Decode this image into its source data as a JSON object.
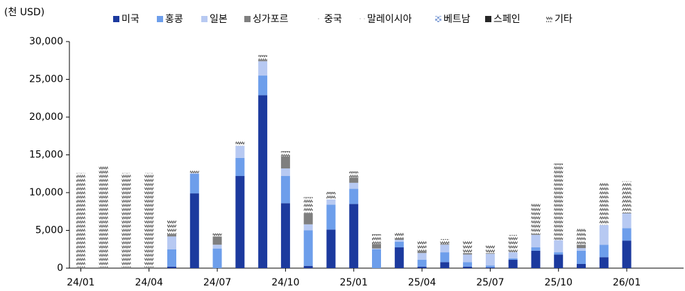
{
  "chart_data": {
    "type": "stacked_bar",
    "y_label": "(천 USD)",
    "categories": [
      "24/01",
      null,
      null,
      "24/04",
      null,
      null,
      "24/07",
      null,
      null,
      "24/10",
      null,
      null,
      "25/01",
      null,
      null,
      "25/04",
      null,
      null,
      "25/07",
      null,
      null,
      "25/10",
      null,
      null,
      "26/01",
      null,
      null
    ],
    "ylim": [
      0,
      30000
    ],
    "yticks": [
      0,
      {
        "value": 5000,
        "label": "5,000"
      },
      {
        "value": 10000,
        "label": "10,000"
      },
      {
        "value": 15000,
        "label": "15,000"
      },
      {
        "value": 20000,
        "label": "20,000"
      },
      {
        "value": 25000,
        "label": "25,000"
      },
      {
        "value": 30000,
        "label": "30,000"
      }
    ],
    "grid": false,
    "legend": "top",
    "series": [
      {
        "name": "미국",
        "color": "#1c3a9e",
        "pattern": "solid",
        "values": [
          0,
          0,
          0,
          0,
          200,
          9900,
          0,
          12200,
          22900,
          8600,
          300,
          5100,
          8500,
          0,
          2750,
          200,
          800,
          200,
          100,
          1100,
          2300,
          1800,
          550,
          1450,
          3650,
          null,
          null
        ]
      },
      {
        "name": "홍콩",
        "color": "#6d9eeb",
        "pattern": "solid",
        "values": [
          0,
          0,
          0,
          0,
          2300,
          2600,
          2600,
          2400,
          2600,
          3600,
          4700,
          3300,
          2000,
          2500,
          750,
          900,
          1300,
          600,
          250,
          200,
          450,
          300,
          1750,
          1650,
          1650,
          null,
          null
        ]
      },
      {
        "name": "일본",
        "color": "#b7c9f2",
        "pattern": "solid",
        "values": [
          0,
          0,
          0,
          0,
          1700,
          100,
          500,
          1600,
          1900,
          1000,
          800,
          700,
          800,
          100,
          250,
          900,
          1000,
          1000,
          1550,
          800,
          1650,
          1600,
          350,
          2600,
          1950,
          null,
          null
        ]
      },
      {
        "name": "싱가포르",
        "color": "#7f7f7f",
        "pattern": "solid",
        "values": [
          0,
          0,
          0,
          0,
          200,
          0,
          1100,
          0,
          200,
          1600,
          1500,
          0,
          700,
          600,
          200,
          200,
          100,
          200,
          100,
          0,
          100,
          0,
          450,
          0,
          100,
          null,
          null
        ]
      },
      {
        "name": "중국",
        "color": "#a6a6a6",
        "pattern": "dots",
        "values": [
          0,
          0,
          0,
          0,
          0,
          0,
          0,
          0,
          0,
          0,
          0,
          0,
          0,
          0,
          0,
          0,
          0,
          0,
          0,
          0,
          0,
          0,
          0,
          0,
          0,
          null,
          null
        ]
      },
      {
        "name": "말레이시아",
        "color": "#bfbfbf",
        "pattern": "dots",
        "values": [
          0,
          0,
          0,
          0,
          0,
          0,
          0,
          0,
          0,
          0,
          0,
          0,
          0,
          0,
          0,
          0,
          0,
          0,
          0,
          0,
          0,
          0,
          0,
          0,
          0,
          null,
          null
        ]
      },
      {
        "name": "베트남",
        "color": "#8ea9db",
        "pattern": "checker",
        "values": [
          0,
          0,
          0,
          0,
          0,
          0,
          0,
          0,
          0,
          0,
          0,
          0,
          0,
          0,
          0,
          0,
          0,
          0,
          0,
          0,
          0,
          0,
          0,
          0,
          0,
          null,
          null
        ]
      },
      {
        "name": "스페인",
        "color": "#262626",
        "pattern": "solid",
        "values": [
          0,
          0,
          0,
          0,
          0,
          0,
          0,
          0,
          0,
          0,
          0,
          0,
          0,
          0,
          0,
          0,
          0,
          0,
          0,
          0,
          0,
          0,
          0,
          0,
          0,
          null,
          null
        ]
      },
      {
        "name": "기타",
        "color": "#595959",
        "pattern": "zigzag",
        "values": [
          12600,
          13500,
          12600,
          12600,
          2000,
          300,
          400,
          600,
          600,
          700,
          2100,
          1000,
          800,
          1300,
          750,
          1500,
          650,
          1700,
          1000,
          2300,
          4100,
          10150,
          2200,
          5700,
          4150,
          null,
          null
        ]
      }
    ]
  }
}
